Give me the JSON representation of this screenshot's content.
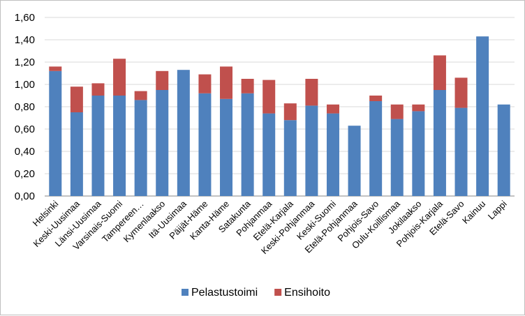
{
  "chart_data": {
    "type": "bar",
    "stacked": true,
    "categories": [
      "Helsinki",
      "Keski-Uusimaa",
      "Länsi-Uusimaa",
      "Varsinais-Suomi",
      "Tampereen…",
      "Kymenlaakso",
      "Itä-Uusimaa",
      "Päijät-Häme",
      "Kanta-Häme",
      "Satakunta",
      "Pohjanmaa",
      "Etelä-Karjala",
      "Keski-Pohjanmaa",
      "Keski-Suomi",
      "Etelä-Pohjanmaa",
      "Pohjois-Savo",
      "Oulu-Koillismaa",
      "Jokilaakso",
      "Pohjois-Karjala",
      "Etelä-Savo",
      "Kainuu",
      "Lappi"
    ],
    "series": [
      {
        "name": "Pelastustoimi",
        "color": "#4f81bd",
        "values": [
          1.12,
          0.75,
          0.9,
          0.9,
          0.86,
          0.95,
          1.13,
          0.92,
          0.87,
          0.92,
          0.74,
          0.68,
          0.81,
          0.74,
          0.63,
          0.85,
          0.69,
          0.76,
          0.95,
          0.79,
          1.43,
          0.82
        ]
      },
      {
        "name": "Ensihoito",
        "color": "#c0504d",
        "values": [
          0.04,
          0.23,
          0.11,
          0.33,
          0.08,
          0.17,
          0.0,
          0.17,
          0.29,
          0.13,
          0.3,
          0.15,
          0.24,
          0.08,
          0.0,
          0.05,
          0.13,
          0.06,
          0.31,
          0.27,
          0.0,
          0.0
        ]
      }
    ],
    "yticks": [
      "0,00",
      "0,20",
      "0,40",
      "0,60",
      "0,80",
      "1,00",
      "1,20",
      "1,40",
      "1,60"
    ],
    "ylim": [
      0,
      1.6
    ],
    "grid": true,
    "legend_position": "bottom",
    "title": "",
    "xlabel": "",
    "ylabel": ""
  }
}
